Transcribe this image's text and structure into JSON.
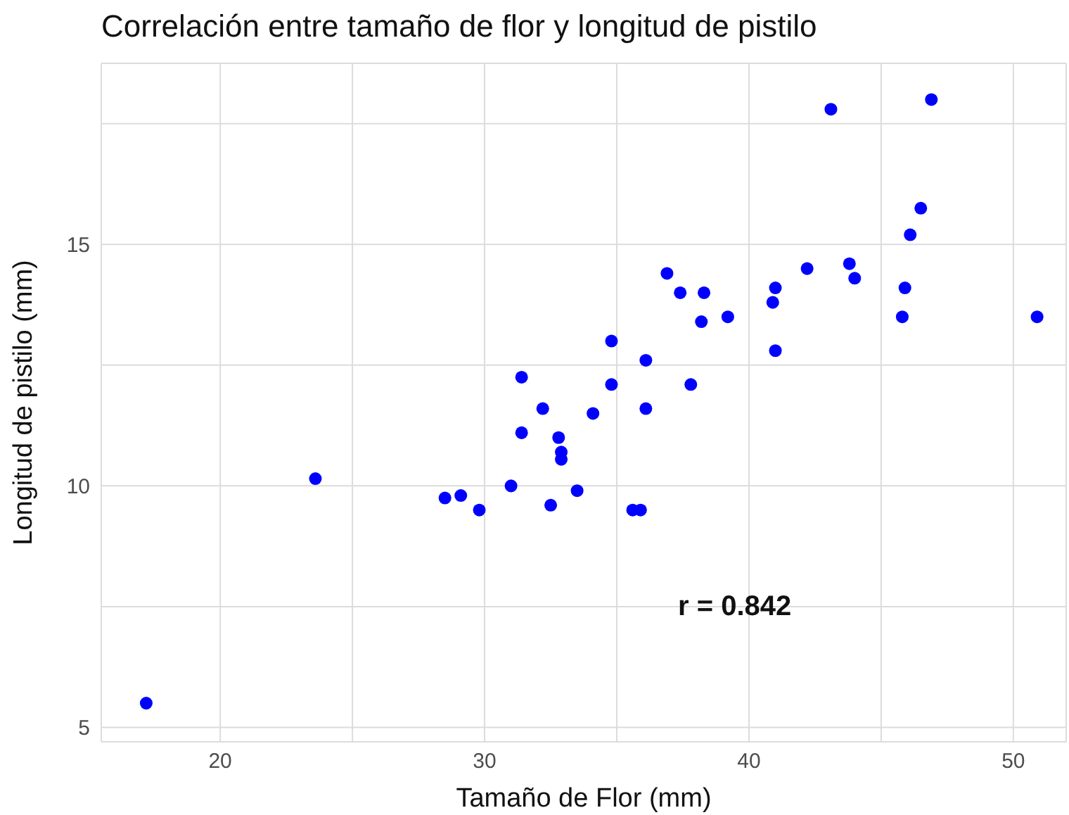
{
  "chart_data": {
    "type": "scatter",
    "title": "Correlación entre tamaño de flor y longitud de pistilo",
    "xlabel": "Tamaño de Flor (mm)",
    "ylabel": "Longitud de pistilo (mm)",
    "x": [
      17.2,
      23.6,
      28.5,
      29.1,
      29.8,
      31.0,
      31.4,
      31.4,
      32.2,
      32.5,
      32.8,
      32.9,
      32.9,
      33.5,
      34.1,
      34.8,
      34.8,
      35.6,
      35.9,
      36.1,
      36.1,
      36.9,
      37.4,
      37.8,
      38.3,
      38.2,
      39.2,
      41.0,
      40.9,
      41.0,
      42.2,
      43.1,
      43.8,
      44.0,
      45.8,
      45.9,
      46.1,
      46.5,
      46.9,
      50.9
    ],
    "values": [
      5.5,
      10.15,
      9.75,
      9.8,
      9.5,
      10.0,
      11.1,
      12.25,
      11.6,
      9.6,
      11.0,
      10.7,
      10.55,
      9.9,
      11.5,
      13.0,
      12.1,
      9.5,
      9.5,
      12.6,
      11.6,
      14.4,
      14.0,
      12.1,
      14.0,
      13.4,
      13.5,
      14.1,
      13.8,
      12.8,
      14.5,
      17.8,
      14.6,
      14.3,
      13.5,
      14.1,
      15.2,
      15.75,
      18.0,
      13.5
    ],
    "color": "#0000ff",
    "marker": "circle",
    "grid": true,
    "xlim": [
      15.5,
      52
    ],
    "ylim": [
      4.7,
      18.75
    ],
    "xticks": [
      20,
      {
        "value": 25,
        "label": null
      },
      30,
      {
        "value": 35,
        "label": null
      },
      40,
      {
        "value": 45,
        "label": null
      },
      50
    ],
    "yticks": [
      5,
      {
        "value": 7.5,
        "label": null
      },
      10,
      {
        "value": 12.5,
        "label": null
      },
      15,
      {
        "value": 17.5,
        "label": null
      }
    ],
    "annotations": [
      "r = 0.842"
    ]
  }
}
